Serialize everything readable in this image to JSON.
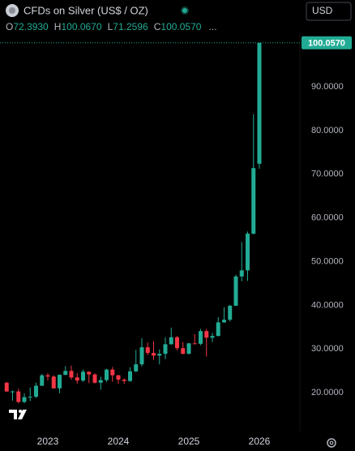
{
  "header": {
    "symbol": "CFDs on Silver (US$ / OZ)",
    "currency": "USD",
    "more": "...",
    "ohlc": [
      {
        "key": "O",
        "value": "72.3930"
      },
      {
        "key": "H",
        "value": "100.0670"
      },
      {
        "key": "L",
        "value": "71.2596"
      },
      {
        "key": "C",
        "value": "100.0570"
      }
    ]
  },
  "chart_data": {
    "type": "candlestick",
    "categories": [
      null,
      null,
      null,
      null,
      null,
      null,
      null,
      "2023",
      null,
      null,
      null,
      null,
      null,
      null,
      null,
      null,
      null,
      null,
      null,
      "2024",
      null,
      null,
      null,
      null,
      null,
      null,
      null,
      null,
      null,
      null,
      null,
      "2025",
      null,
      null,
      null,
      null,
      null,
      null,
      null,
      null,
      null,
      null,
      null,
      "2026"
    ],
    "open": [
      22.3,
      20.3,
      20.3,
      17.9,
      19.0,
      19.1,
      21.6,
      24.0,
      23.7,
      21.0,
      24.1,
      25.0,
      23.5,
      22.8,
      24.8,
      24.2,
      22.3,
      22.9,
      25.3,
      24.0,
      23.0,
      22.7,
      24.9,
      26.5,
      30.4,
      29.1,
      28.5,
      28.9,
      31.1,
      32.7,
      30.2,
      28.9,
      31.3,
      31.2,
      34.1,
      32.6,
      33.0,
      36.1,
      36.7,
      39.9,
      46.6,
      48.0,
      56.4,
      72.393
    ],
    "high": [
      22.5,
      20.5,
      20.9,
      19.9,
      21.2,
      22.3,
      24.3,
      24.5,
      24.0,
      24.2,
      26.1,
      26.2,
      24.5,
      25.3,
      24.9,
      24.4,
      23.7,
      25.5,
      25.9,
      24.1,
      23.3,
      25.8,
      29.8,
      32.5,
      31.5,
      31.8,
      29.9,
      32.7,
      34.9,
      33.0,
      31.6,
      31.4,
      33.4,
      34.6,
      34.6,
      33.7,
      37.3,
      39.5,
      40.1,
      47.0,
      54.5,
      56.9,
      83.7,
      100.067
    ],
    "low": [
      20.2,
      18.2,
      17.6,
      17.6,
      18.1,
      18.8,
      21.6,
      22.8,
      21.0,
      19.9,
      24.0,
      23.0,
      22.1,
      22.5,
      22.2,
      22.1,
      20.7,
      22.5,
      22.5,
      22.0,
      22.0,
      22.5,
      24.7,
      26.0,
      28.6,
      27.5,
      26.5,
      27.7,
      31.0,
      29.7,
      28.8,
      28.8,
      31.1,
      30.9,
      28.3,
      31.6,
      32.9,
      36.0,
      36.3,
      39.9,
      45.5,
      45.6,
      56.2,
      71.2596
    ],
    "close": [
      20.3,
      20.3,
      17.9,
      19.0,
      19.1,
      21.6,
      24.0,
      23.7,
      21.0,
      24.1,
      25.0,
      23.5,
      22.8,
      24.8,
      24.2,
      22.3,
      22.9,
      25.3,
      24.0,
      23.0,
      22.7,
      24.9,
      26.5,
      30.4,
      29.1,
      28.5,
      28.9,
      31.1,
      32.7,
      30.2,
      28.9,
      31.3,
      31.2,
      34.1,
      32.6,
      33.0,
      36.1,
      36.7,
      39.9,
      46.6,
      48.0,
      56.4,
      71.4,
      100.057
    ],
    "up_color": "#22ab94",
    "down_color": "#f23645",
    "ylim": [
      11.5,
      101.5
    ],
    "yticks": [
      {
        "value": 20,
        "label": "20.0000"
      },
      {
        "value": 30,
        "label": "30.0000"
      },
      {
        "value": 40,
        "label": "40.0000"
      },
      {
        "value": 50,
        "label": "50.0000"
      },
      {
        "value": 60,
        "label": "60.0000"
      },
      {
        "value": 70,
        "label": "70.0000"
      },
      {
        "value": 80,
        "label": "80.0000"
      },
      {
        "value": 90,
        "label": "90.0000"
      }
    ],
    "last_price": {
      "value": 100.057,
      "label": "100.0570"
    },
    "grid": false
  }
}
